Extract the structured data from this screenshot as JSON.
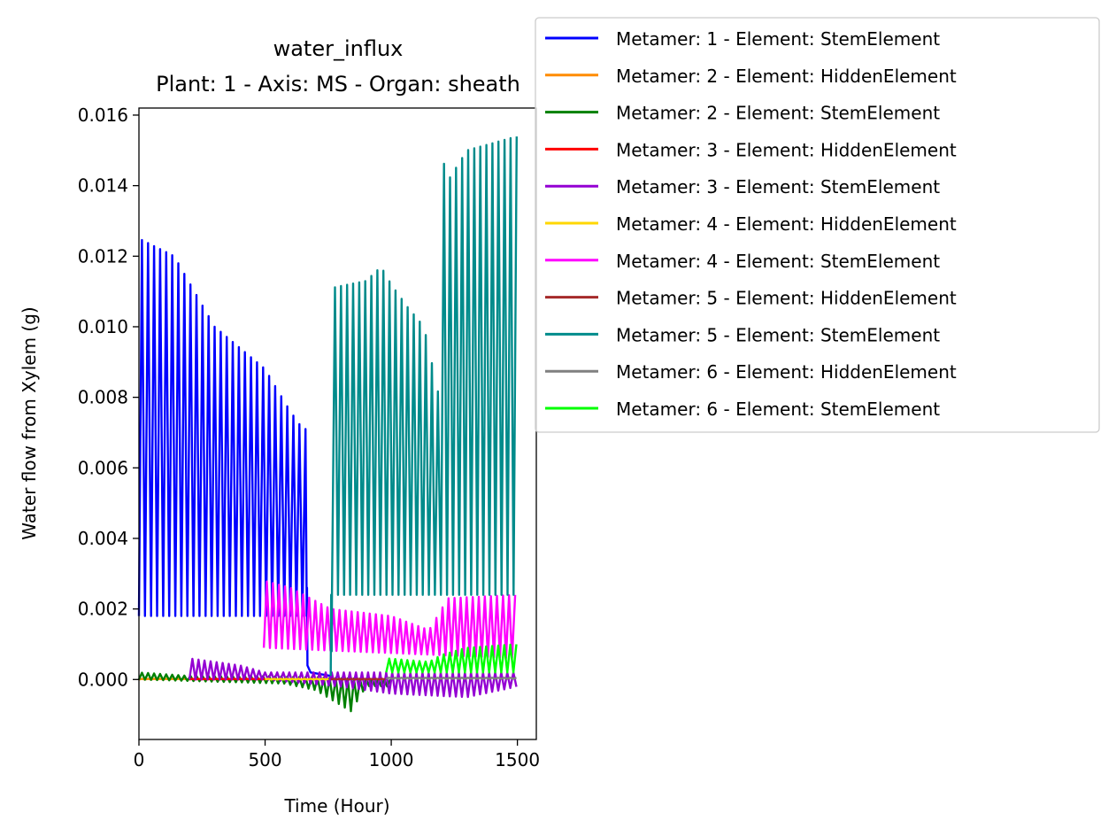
{
  "chart_data": {
    "type": "line",
    "title": "water_influx",
    "subtitle": "Plant: 1 - Axis: MS - Organ: sheath",
    "xlabel": "Time (Hour)",
    "ylabel": "Water flow from Xylem (g)",
    "xlim": [
      0,
      1575
    ],
    "ylim": [
      -0.0017,
      0.0162
    ],
    "xticks": [
      0,
      500,
      1000,
      1500
    ],
    "xtick_labels": [
      "0",
      "500",
      "1000",
      "1500"
    ],
    "yticks": [
      0.0,
      0.002,
      0.004,
      0.006,
      0.008,
      0.01,
      0.012,
      0.014,
      0.016
    ],
    "ytick_labels": [
      "0.000",
      "0.002",
      "0.004",
      "0.006",
      "0.008",
      "0.010",
      "0.012",
      "0.014",
      "0.016"
    ],
    "grid": false,
    "legend_position": "outside-top-right",
    "period_hours": 24,
    "series": [
      {
        "name": "Metamer: 1 - Element: StemElement",
        "color": "#0000ff",
        "start": 0,
        "end": 665,
        "lo": [
          0.0018,
          0.0018
        ],
        "peaks": [
          [
            0,
            0.0125
          ],
          [
            140,
            0.012
          ],
          [
            300,
            0.01
          ],
          [
            500,
            0.0088
          ],
          [
            600,
            0.0076
          ],
          [
            650,
            0.0071
          ]
        ],
        "tail": [
          [
            665,
            0.0018
          ],
          [
            666,
            0.0026
          ],
          [
            668,
            0.0004
          ],
          [
            680,
            0.0002
          ],
          [
            762,
            0.0001
          ],
          [
            763,
            0.0
          ]
        ]
      },
      {
        "name": "Metamer: 2 - Element: HiddenElement",
        "color": "#ff8c00",
        "start": 0,
        "end": 500,
        "lo": [
          0.0,
          0.0
        ],
        "peaks": [
          [
            0,
            2e-05
          ],
          [
            500,
            2e-05
          ]
        ]
      },
      {
        "name": "Metamer: 2 - Element: StemElement",
        "color": "#008000",
        "start": 0,
        "end": 1000,
        "lo": [
          0.0,
          -0.0002
        ],
        "peaks": [
          [
            0,
            0.0002
          ],
          [
            200,
            0.0001
          ],
          [
            500,
            0.0001
          ],
          [
            1000,
            0.0
          ]
        ],
        "dips": [
          [
            500,
            0.0
          ],
          [
            700,
            -0.0003
          ],
          [
            840,
            -0.0009
          ],
          [
            900,
            -0.0002
          ],
          [
            1000,
            0.0
          ]
        ]
      },
      {
        "name": "Metamer: 3 - Element: HiddenElement",
        "color": "#ff0000",
        "start": 200,
        "end": 500,
        "lo": [
          0.0,
          0.0
        ],
        "peaks": [
          [
            200,
            2e-05
          ],
          [
            500,
            2e-05
          ]
        ]
      },
      {
        "name": "Metamer: 3 - Element: StemElement",
        "color": "#9400d3",
        "start": 200,
        "end": 1500,
        "lo": [
          0.0001,
          0.0
        ],
        "peaks": [
          [
            200,
            0.0006
          ],
          [
            400,
            0.0004
          ],
          [
            500,
            0.0002
          ],
          [
            1500,
            0.0002
          ]
        ],
        "dips": [
          [
            500,
            0.0
          ],
          [
            800,
            -0.0002
          ],
          [
            1000,
            -0.0004
          ],
          [
            1300,
            -0.0005
          ],
          [
            1500,
            -0.0002
          ]
        ]
      },
      {
        "name": "Metamer: 4 - Element: HiddenElement",
        "color": "#ffd700",
        "start": 500,
        "end": 760,
        "lo": [
          0.0,
          0.0
        ],
        "peaks": [
          [
            500,
            2e-05
          ],
          [
            760,
            2e-05
          ]
        ]
      },
      {
        "name": "Metamer: 4 - Element: StemElement",
        "color": "#ff00ff",
        "start": 495,
        "end": 1500,
        "lo": [
          0.0009,
          0.0006
        ],
        "peaks": [
          [
            495,
            0.0028
          ],
          [
            600,
            0.0026
          ],
          [
            760,
            0.002
          ],
          [
            1000,
            0.0018
          ],
          [
            1150,
            0.0014
          ],
          [
            1200,
            0.002
          ],
          [
            1220,
            0.0023
          ],
          [
            1500,
            0.0024
          ]
        ]
      },
      {
        "name": "Metamer: 5 - Element: HiddenElement",
        "color": "#a52a2a",
        "start": 760,
        "end": 980,
        "lo": [
          0.0,
          0.0
        ],
        "peaks": [
          [
            760,
            2e-05
          ],
          [
            980,
            2e-05
          ]
        ]
      },
      {
        "name": "Metamer: 5 - Element: StemElement",
        "color": "#008b8b",
        "start": 765,
        "end": 1500,
        "lo": [
          0.0024,
          0.0024
        ],
        "peaks": [
          [
            765,
            0.0111
          ],
          [
            900,
            0.0113
          ],
          [
            960,
            0.0117
          ],
          [
            1000,
            0.0112
          ],
          [
            1060,
            0.0106
          ],
          [
            1130,
            0.01
          ],
          [
            1190,
            0.008
          ],
          [
            1200,
            0.0148
          ],
          [
            1230,
            0.0142
          ],
          [
            1300,
            0.015
          ],
          [
            1500,
            0.0154
          ]
        ],
        "lead": [
          [
            760,
            0.0001
          ],
          [
            762,
            0.0024
          ],
          [
            764,
            0.0008
          ]
        ]
      },
      {
        "name": "Metamer: 6 - Element: HiddenElement",
        "color": "#808080",
        "start": 980,
        "end": 1500,
        "lo": [
          2e-05,
          2e-05
        ],
        "peaks": [
          [
            980,
            5e-05
          ],
          [
            1500,
            5e-05
          ]
        ]
      },
      {
        "name": "Metamer: 6 - Element: StemElement",
        "color": "#00ff00",
        "start": 980,
        "end": 1500,
        "lo": [
          0.0002,
          0.0002
        ],
        "peaks": [
          [
            980,
            0.0006
          ],
          [
            1150,
            0.0005
          ],
          [
            1200,
            0.0007
          ],
          [
            1300,
            0.0009
          ],
          [
            1500,
            0.001
          ]
        ]
      }
    ]
  }
}
